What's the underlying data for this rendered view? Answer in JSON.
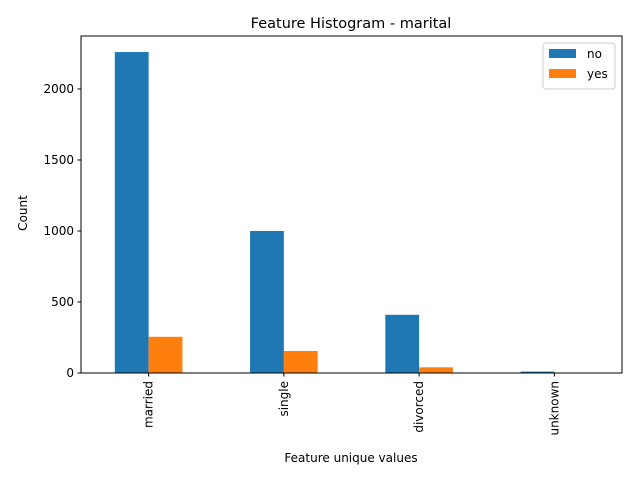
{
  "chart_data": {
    "type": "bar",
    "title": "Feature Histogram - marital",
    "xlabel": "Feature unique values",
    "ylabel": "Count",
    "categories": [
      "married",
      "single",
      "divorced",
      "unknown"
    ],
    "series": [
      {
        "name": "no",
        "color": "#1f77b4",
        "values": [
          2260,
          1000,
          410,
          10
        ]
      },
      {
        "name": "yes",
        "color": "#ff7f0e",
        "values": [
          255,
          155,
          40,
          0
        ]
      }
    ],
    "ylim": [
      0,
      2373
    ],
    "yticks": [
      0,
      500,
      1000,
      1500,
      2000
    ],
    "legend_position": "top-right",
    "grid": false
  }
}
